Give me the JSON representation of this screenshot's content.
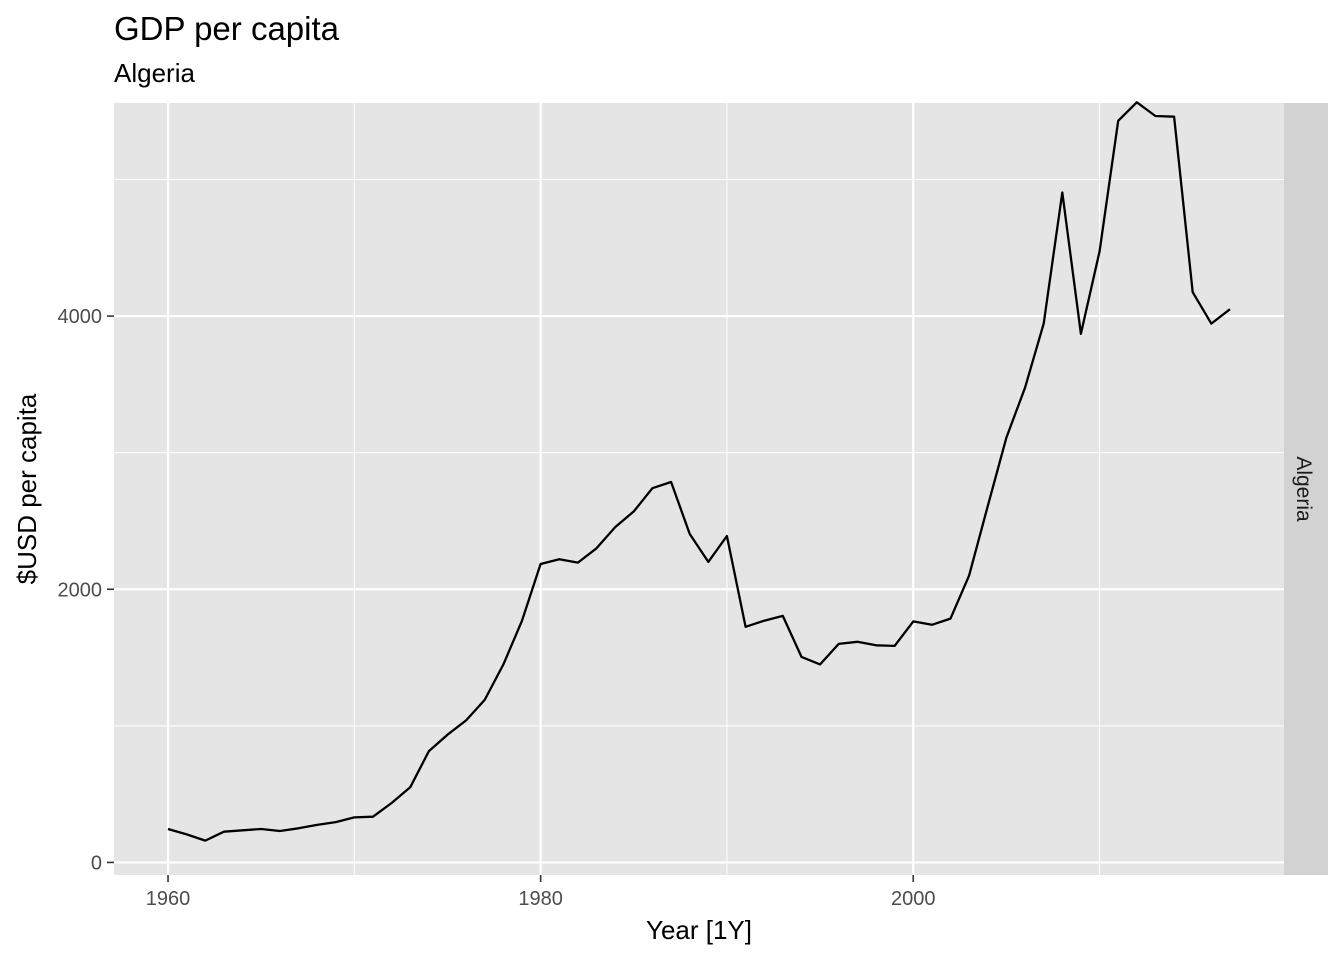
{
  "chart_data": {
    "type": "line",
    "title": "GDP per capita",
    "subtitle": "Algeria",
    "xlabel": "Year [1Y]",
    "ylabel": "$USD per capita",
    "facet_label": "Algeria",
    "xlim": [
      1957.1,
      2019.9
    ],
    "ylim": [
      -92,
      5560
    ],
    "x_ticks": [
      1960,
      1980,
      2000
    ],
    "x_minor": [
      1970,
      1990,
      2010
    ],
    "y_ticks": [
      0,
      2000,
      4000
    ],
    "y_minor": [
      1000,
      3000,
      5000
    ],
    "grid": true,
    "colors": {
      "panel": "#e5e5e5",
      "grid": "#ffffff",
      "strip": "#d2d2d2",
      "line": "#000000"
    },
    "series": [
      {
        "x": [
          1960,
          1961,
          1962,
          1963,
          1964,
          1965,
          1966,
          1967,
          1968,
          1969,
          1970,
          1971,
          1972,
          1973,
          1974,
          1975,
          1976,
          1977,
          1978,
          1979,
          1980,
          1981,
          1982,
          1983,
          1984,
          1985,
          1986,
          1987,
          1988,
          1989,
          1990,
          1991,
          1992,
          1993,
          1994,
          1995,
          1996,
          1997,
          1998,
          1999,
          2000,
          2001,
          2002,
          2003,
          2004,
          2005,
          2006,
          2007,
          2008,
          2009,
          2010,
          2011,
          2012,
          2013,
          2014,
          2015,
          2016,
          2017
        ],
        "values": [
          245,
          205,
          160,
          225,
          235,
          245,
          230,
          250,
          275,
          295,
          330,
          335,
          435,
          550,
          815,
          935,
          1040,
          1190,
          1450,
          1770,
          2185,
          2220,
          2195,
          2300,
          2455,
          2570,
          2740,
          2785,
          2405,
          2200,
          2390,
          1725,
          1770,
          1805,
          1505,
          1450,
          1600,
          1615,
          1590,
          1585,
          1765,
          1740,
          1785,
          2100,
          2610,
          3110,
          3475,
          3945,
          4905,
          3870,
          4475,
          5430,
          5565,
          5465,
          5460,
          4175,
          3945,
          4050
        ]
      }
    ]
  }
}
